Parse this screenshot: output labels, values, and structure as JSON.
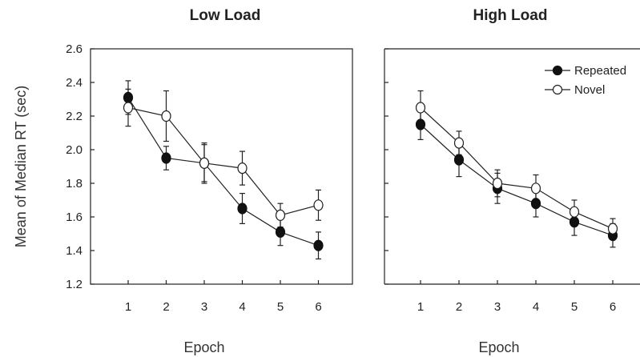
{
  "chart_data": [
    {
      "type": "line",
      "title": "Low Load",
      "xlabel": "Epoch",
      "ylabel": "Mean of Median RT (sec)",
      "x": [
        1,
        2,
        3,
        4,
        5,
        6
      ],
      "xlim": [
        0,
        7
      ],
      "ylim": [
        1.2,
        2.6
      ],
      "yticks": [
        "1.2",
        "1.4",
        "1.6",
        "1.8",
        "2.0",
        "2.2",
        "2.4",
        "2.6"
      ],
      "xticks": [
        "1",
        "2",
        "3",
        "4",
        "5",
        "6"
      ],
      "series": [
        {
          "name": "Repeated",
          "marker": "filled-circle",
          "values": [
            2.31,
            1.95,
            1.92,
            1.65,
            1.51,
            1.43
          ],
          "errors": [
            0.1,
            0.07,
            0.12,
            0.09,
            0.08,
            0.08
          ]
        },
        {
          "name": "Novel",
          "marker": "open-circle",
          "values": [
            2.25,
            2.2,
            1.92,
            1.89,
            1.61,
            1.67
          ],
          "errors": [
            0.11,
            0.15,
            0.11,
            0.1,
            0.07,
            0.09
          ]
        }
      ],
      "legend": false,
      "grid": false
    },
    {
      "type": "line",
      "title": "High Load",
      "xlabel": "Epoch",
      "ylabel": "",
      "x": [
        1,
        2,
        3,
        4,
        5,
        6
      ],
      "xlim": [
        0,
        7
      ],
      "ylim": [
        1.2,
        2.6
      ],
      "xticks": [
        "1",
        "2",
        "3",
        "4",
        "5",
        "6"
      ],
      "series": [
        {
          "name": "Repeated",
          "marker": "filled-circle",
          "values": [
            2.15,
            1.94,
            1.77,
            1.68,
            1.57,
            1.49
          ],
          "errors": [
            0.09,
            0.1,
            0.09,
            0.08,
            0.08,
            0.07
          ]
        },
        {
          "name": "Novel",
          "marker": "open-circle",
          "values": [
            2.25,
            2.04,
            1.8,
            1.77,
            1.63,
            1.53
          ],
          "errors": [
            0.1,
            0.07,
            0.08,
            0.08,
            0.07,
            0.06
          ]
        }
      ],
      "legend": true,
      "legend_position": "top-right",
      "grid": false
    }
  ],
  "colors": {
    "line": "#222222",
    "axis": "#222222",
    "filled_marker": "#111111",
    "open_marker_fill": "#ffffff"
  }
}
